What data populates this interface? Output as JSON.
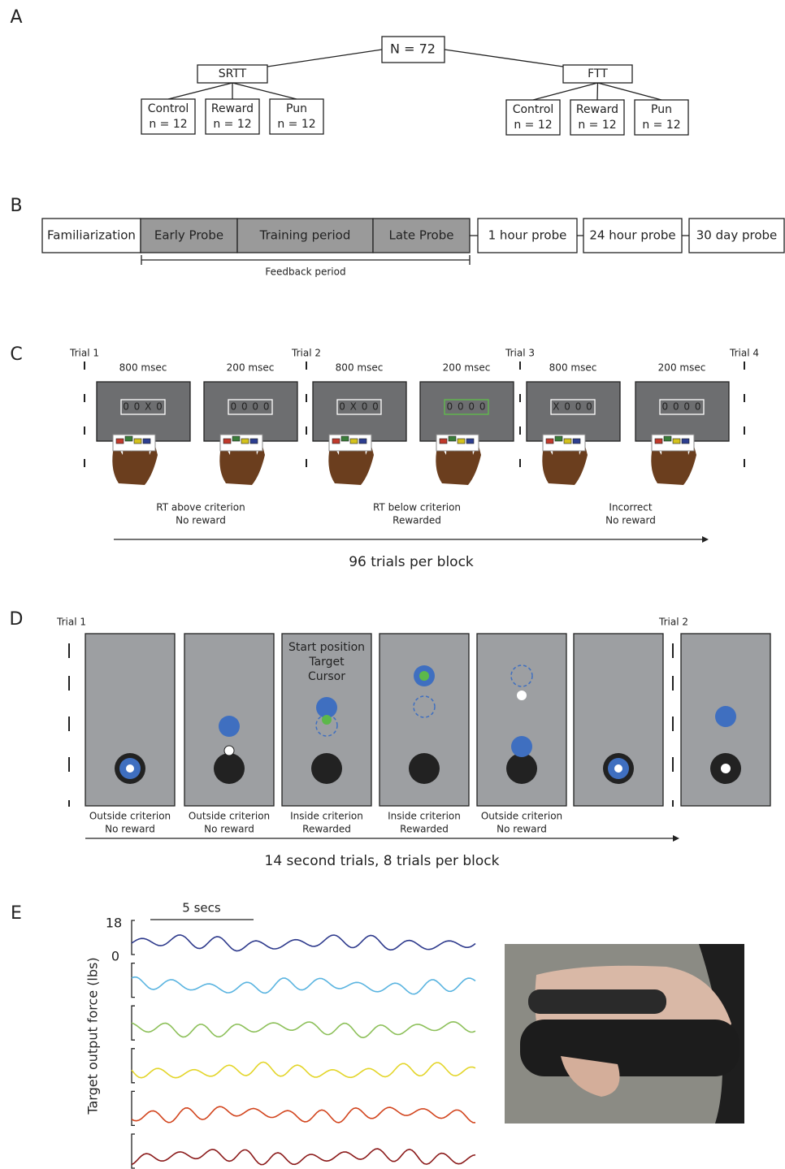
{
  "panel_labels": [
    "A",
    "B",
    "C",
    "D",
    "E"
  ],
  "tree": {
    "root": "N = 72",
    "groups": [
      {
        "label": "SRTT",
        "children": [
          {
            "name": "Control",
            "n": "n = 12"
          },
          {
            "name": "Reward",
            "n": "n = 12"
          },
          {
            "name": "Pun",
            "n": "n = 12"
          }
        ]
      },
      {
        "label": "FTT",
        "children": [
          {
            "name": "Control",
            "n": "n = 12"
          },
          {
            "name": "Reward",
            "n": "n = 12"
          },
          {
            "name": "Pun",
            "n": "n = 12"
          }
        ]
      }
    ]
  },
  "timeline": {
    "stages": [
      "Familiarization",
      "Early Probe",
      "Training period",
      "Late Probe",
      "1 hour probe",
      "24 hour probe",
      "30 day probe"
    ],
    "feedback_label": "Feedback period"
  },
  "srtt": {
    "trials": [
      "Trial 1",
      "Trial 2",
      "Trial 3",
      "Trial 4"
    ],
    "durations": [
      "800 msec",
      "200 msec",
      "800 msec",
      "200 msec",
      "800 msec",
      "200 msec"
    ],
    "screens": [
      "0 0 X 0",
      "0 0 0 0",
      "0 X 0 0",
      "0 0 0 0",
      "X 0 0 0",
      "0 0 0 0"
    ],
    "outcomes": [
      [
        "RT above criterion",
        "No reward"
      ],
      [
        "RT below criterion",
        "Rewarded"
      ],
      [
        "Incorrect",
        "No reward"
      ]
    ],
    "footer": "96 trials per block"
  },
  "ftt": {
    "trials": [
      "Trial 1",
      "Trial 2"
    ],
    "legend": [
      "Start position",
      "Target",
      "Cursor"
    ],
    "outcomes": [
      [
        "Outside criterion",
        "No reward"
      ],
      [
        "Outside criterion",
        "No reward"
      ],
      [
        "Inside criterion",
        "Rewarded"
      ],
      [
        "Inside criterion",
        "Rewarded"
      ],
      [
        "Outside criterion",
        "No reward"
      ]
    ],
    "footer": "14 second trials, 8 trials per block"
  },
  "force": {
    "scale_label": "5 secs",
    "ytick_labels": [
      "18",
      "0"
    ],
    "ylabel": "Target output force (lbs)",
    "trace_colors": [
      "#2e3a8c",
      "#5ab4e0",
      "#8dc05a",
      "#e3d52a",
      "#d2451e",
      "#8b1a1a"
    ]
  }
}
